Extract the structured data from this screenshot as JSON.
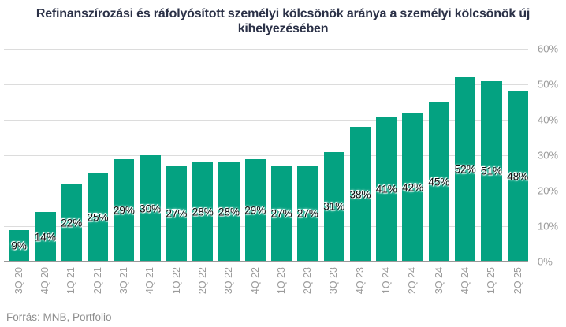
{
  "title": "Refinanszírozási és ráfolyósított személyi kölcsönök aránya a személyi kölcsönök új kihelyezésében",
  "source": "Forrás: MNB, Portfolio",
  "colors": {
    "bar": "#04a281",
    "title": "#2b3147",
    "grid": "#dcdcdc",
    "axisline": "#999999",
    "axislabel": "#9b9b9b",
    "datalabel": "#111111",
    "source": "#8e8e8e",
    "background": "#ffffff"
  },
  "chart_data": {
    "type": "bar",
    "title": "Refinanszírozási és ráfolyósított személyi kölcsönök aránya a személyi kölcsönök új kihelyezésében",
    "categories": [
      "3Q 20",
      "4Q 20",
      "1Q 21",
      "2Q 21",
      "3Q 21",
      "4Q 21",
      "1Q 22",
      "2Q 22",
      "3Q 22",
      "4Q 22",
      "1Q 23",
      "2Q 23",
      "3Q 23",
      "4Q 23",
      "1Q 24",
      "2Q 24",
      "3Q 24",
      "4Q 24",
      "1Q 25",
      "2Q 25"
    ],
    "values": [
      9,
      14,
      22,
      25,
      29,
      30,
      27,
      28,
      28,
      29,
      27,
      27,
      31,
      38,
      41,
      42,
      45,
      52,
      51,
      48
    ],
    "unit": "%",
    "xlabel": "",
    "ylabel": "",
    "ylim": [
      0,
      60
    ],
    "ytick_step": 10,
    "yticks": [
      "0%",
      "10%",
      "20%",
      "30%",
      "40%",
      "50%",
      "60%"
    ],
    "y_axis_side": "right",
    "grid": "horizontal",
    "value_labels": "centered-in-bar",
    "legend": "none"
  }
}
